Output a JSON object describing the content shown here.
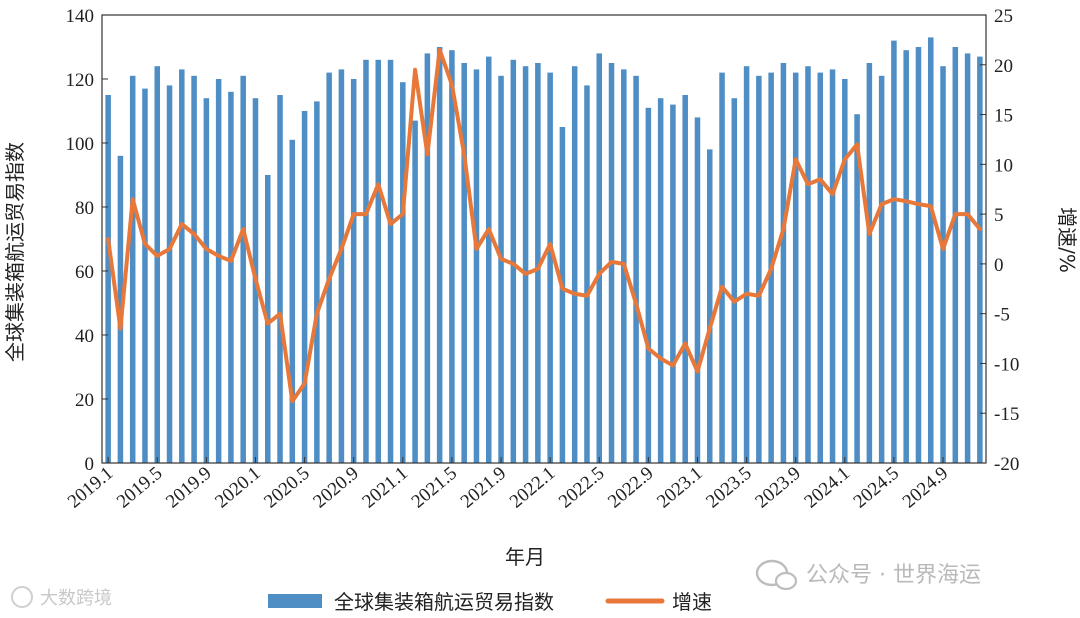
{
  "chart_data": {
    "type": "bar",
    "title": "",
    "xlabel": "年月",
    "ylabel": "全球集装箱航运贸易指数",
    "y2label": "增速/%",
    "ylim": [
      0,
      140
    ],
    "y2lim": [
      -20,
      25
    ],
    "y_ticks": [
      0,
      20,
      40,
      60,
      80,
      100,
      120,
      140
    ],
    "y2_ticks": [
      -20,
      -15,
      -10,
      -5,
      0,
      5,
      10,
      15,
      20,
      25
    ],
    "x_tick_labels": [
      "2019.1",
      "2019.5",
      "2019.9",
      "2020.1",
      "2020.5",
      "2020.9",
      "2021.1",
      "2021.5",
      "2021.9",
      "2022.1",
      "2022.5",
      "2022.9",
      "2023.1",
      "2023.5",
      "2023.9",
      "2024.1",
      "2024.5",
      "2024.9"
    ],
    "legend_position": "bottom-center",
    "grid": false,
    "colors": {
      "bar": "#4f8ec4",
      "line": "#e8783a"
    },
    "series": [
      {
        "name": "全球集装箱航运贸易指数",
        "type": "bar",
        "axis": "left",
        "values": [
          115,
          96,
          121,
          117,
          124,
          118,
          123,
          121,
          114,
          120,
          116,
          121,
          114,
          90,
          115,
          101,
          110,
          113,
          122,
          123,
          120,
          126,
          126,
          126,
          119,
          107,
          128,
          130,
          129,
          125,
          123,
          127,
          121,
          126,
          124,
          125,
          122,
          105,
          124,
          118,
          128,
          125,
          123,
          121,
          111,
          114,
          112,
          115,
          108,
          98,
          122,
          114,
          124,
          121,
          122,
          125,
          122,
          124,
          122,
          123,
          120,
          109,
          125,
          121,
          132,
          129,
          130,
          133,
          124,
          130,
          128,
          127
        ],
        "x": [
          "2019.1",
          "2019.2",
          "2019.3",
          "2019.4",
          "2019.5",
          "2019.6",
          "2019.7",
          "2019.8",
          "2019.9",
          "2019.10",
          "2019.11",
          "2019.12",
          "2020.1",
          "2020.2",
          "2020.3",
          "2020.4",
          "2020.5",
          "2020.6",
          "2020.7",
          "2020.8",
          "2020.9",
          "2020.10",
          "2020.11",
          "2020.12",
          "2021.1",
          "2021.2",
          "2021.3",
          "2021.4",
          "2021.5",
          "2021.6",
          "2021.7",
          "2021.8",
          "2021.9",
          "2021.10",
          "2021.11",
          "2021.12",
          "2022.1",
          "2022.2",
          "2022.3",
          "2022.4",
          "2022.5",
          "2022.6",
          "2022.7",
          "2022.8",
          "2022.9",
          "2022.10",
          "2022.11",
          "2022.12",
          "2023.1",
          "2023.2",
          "2023.3",
          "2023.4",
          "2023.5",
          "2023.6",
          "2023.7",
          "2023.8",
          "2023.9",
          "2023.10",
          "2023.11",
          "2023.12",
          "2024.1",
          "2024.2",
          "2024.3",
          "2024.4",
          "2024.5",
          "2024.6",
          "2024.7",
          "2024.8",
          "2024.9",
          "2024.10",
          "2024.11",
          "2024.12"
        ]
      },
      {
        "name": "增速",
        "type": "line",
        "axis": "right",
        "values": [
          2.5,
          -6.5,
          6.5,
          2,
          0.8,
          1.5,
          4,
          3,
          1.5,
          0.8,
          0.3,
          3.5,
          -1.5,
          -6,
          -5,
          -13.8,
          -12,
          -5,
          -1.5,
          1.5,
          5,
          5,
          8,
          4,
          5,
          19.5,
          11,
          21.5,
          18,
          11,
          1.5,
          3.5,
          0.5,
          0,
          -1,
          -0.5,
          2,
          -2.5,
          -3,
          -3.2,
          -1,
          0.2,
          0,
          -4,
          -8.5,
          -9.5,
          -10.2,
          -8,
          -10.8,
          -6.5,
          -2.3,
          -3.8,
          -3,
          -3.2,
          -0.5,
          3.5,
          10.5,
          8,
          8.5,
          7,
          10.5,
          12,
          3,
          6,
          6.5,
          6.3,
          6,
          5.8,
          1.5,
          5,
          5,
          3.5
        ]
      }
    ]
  },
  "legend": {
    "bar_label": "全球集装箱航运贸易指数",
    "line_label": "增速"
  },
  "watermarks": {
    "left": "大数跨境",
    "right": "公众号 · 世界海运"
  }
}
